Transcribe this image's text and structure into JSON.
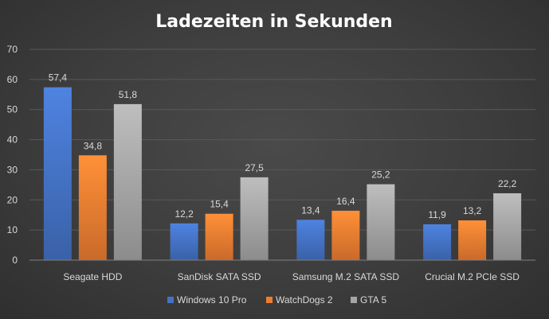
{
  "chart_data": {
    "type": "bar",
    "title": "Ladezeiten in Sekunden",
    "categories": [
      "Seagate HDD",
      "SanDisk SATA SSD",
      "Samsung M.2 SATA SSD",
      "Crucial M.2 PCIe SSD"
    ],
    "series": [
      {
        "name": "Windows 10 Pro",
        "values": [
          57.4,
          12.2,
          13.4,
          11.9
        ],
        "labels": [
          "57,4",
          "12,2",
          "13,4",
          "11,9"
        ],
        "color": "#4472c4"
      },
      {
        "name": "WatchDogs 2",
        "values": [
          34.8,
          15.4,
          16.4,
          13.2
        ],
        "labels": [
          "34,8",
          "15,4",
          "16,4",
          "13,2"
        ],
        "color": "#ed7d31"
      },
      {
        "name": "GTA 5",
        "values": [
          51.8,
          27.5,
          25.2,
          22.2
        ],
        "labels": [
          "51,8",
          "27,5",
          "25,2",
          "22,2"
        ],
        "color": "#a5a5a5"
      }
    ],
    "ylim": [
      0,
      70
    ],
    "yticks": [
      0,
      10,
      20,
      30,
      40,
      50,
      60,
      70
    ],
    "grid": true,
    "legend": "bottom",
    "colors": {
      "background": "#404040",
      "text": "#d9d9d9",
      "title": "#ffffff",
      "grid": "#595959"
    }
  }
}
